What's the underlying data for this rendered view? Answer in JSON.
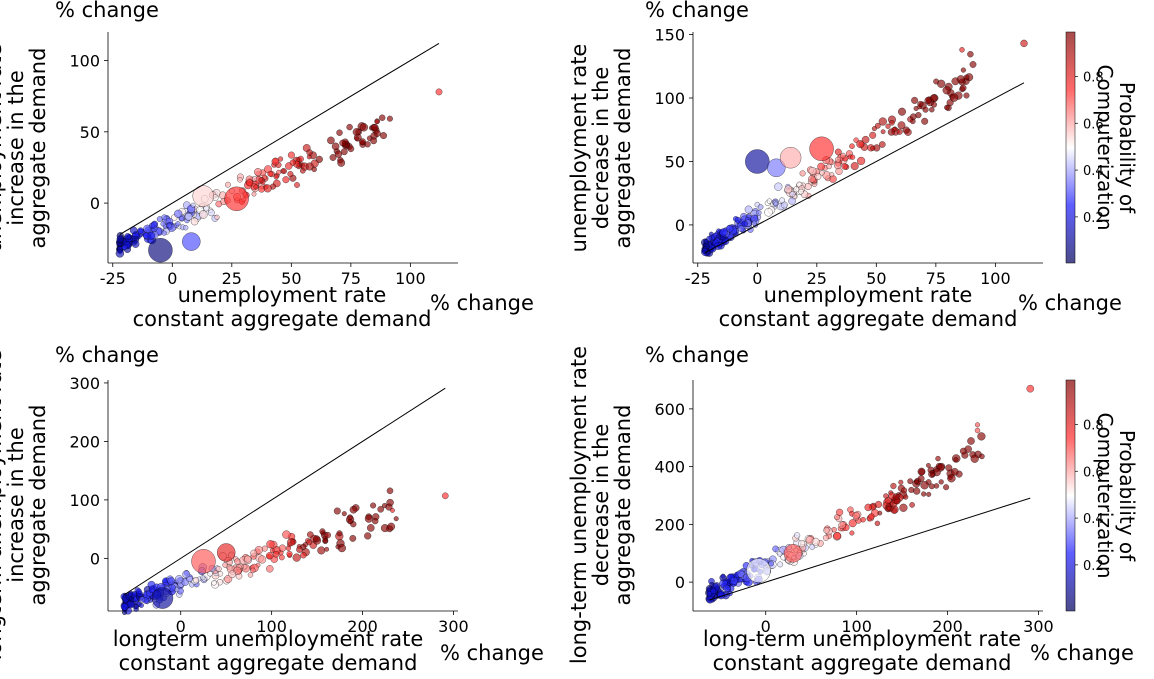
{
  "chart_data": [
    {
      "type": "scatter",
      "id": "p1",
      "x_label": [
        "unemployment rate",
        "constant aggregate demand"
      ],
      "y_label": [
        "unemployment rate",
        "increase in the",
        "aggregate demand"
      ],
      "x_unit": "% change",
      "y_unit": "% change",
      "xlim": [
        -27,
        120
      ],
      "ylim": [
        -42,
        120
      ],
      "x_ticks": [
        -25,
        0,
        25,
        50,
        75,
        100
      ],
      "y_ticks": [
        0,
        50,
        100
      ],
      "reference_line": {
        "x": [
          -22,
          112
        ],
        "y": [
          -22,
          112
        ]
      },
      "trend_fit": {
        "slope": 0.75,
        "intercept": -13
      },
      "x_data_range": [
        -22,
        112
      ],
      "sample_points": [
        {
          "x": -5,
          "y": -33,
          "p": 0.05,
          "big": true
        },
        {
          "x": 8,
          "y": -27,
          "p": 0.3,
          "big": true
        },
        {
          "x": 13,
          "y": 5,
          "p": 0.55,
          "big": true
        },
        {
          "x": 27,
          "y": 3,
          "p": 0.75,
          "big": true
        },
        {
          "x": 112,
          "y": 78,
          "p": 0.75,
          "big": false
        },
        {
          "x": 86,
          "y": 57,
          "p": 0.9,
          "big": false
        }
      ]
    },
    {
      "type": "scatter",
      "id": "p2",
      "x_label": [
        "unemployment rate",
        "constant aggregate demand"
      ],
      "y_label": [
        "unemployment rate",
        "decrease in the",
        "aggregate demand"
      ],
      "x_unit": "% change",
      "y_unit": "% change",
      "xlim": [
        -27,
        120
      ],
      "ylim": [
        -30,
        152
      ],
      "x_ticks": [
        -25,
        0,
        25,
        50,
        75,
        100
      ],
      "y_ticks": [
        0,
        50,
        100,
        150
      ],
      "reference_line": {
        "x": [
          -22,
          112
        ],
        "y": [
          -22,
          112
        ]
      },
      "trend_fit": {
        "slope": 1.2,
        "intercept": 8
      },
      "x_data_range": [
        -22,
        112
      ],
      "sample_points": [
        {
          "x": 0,
          "y": 50,
          "p": 0.1,
          "big": true
        },
        {
          "x": 8,
          "y": 45,
          "p": 0.35,
          "big": true
        },
        {
          "x": 14,
          "y": 53,
          "p": 0.6,
          "big": true
        },
        {
          "x": 27,
          "y": 60,
          "p": 0.75,
          "big": true
        },
        {
          "x": 112,
          "y": 143,
          "p": 0.85,
          "big": false
        },
        {
          "x": 86,
          "y": 138,
          "p": 0.8,
          "big": false
        }
      ]
    },
    {
      "type": "scatter",
      "id": "p3",
      "x_label": [
        "longterm unemployment rate",
        "constant aggregate demand"
      ],
      "y_label": [
        "longterm unemployment rate",
        "increase in the",
        "aggregate demand"
      ],
      "x_unit": "% change",
      "y_unit": "% change",
      "xlim": [
        -80,
        305
      ],
      "ylim": [
        -90,
        305
      ],
      "x_ticks": [
        0,
        100,
        200,
        300
      ],
      "y_ticks": [
        0,
        100,
        200,
        300
      ],
      "reference_line": {
        "x": [
          -62,
          291
        ],
        "y": [
          -62,
          291
        ]
      },
      "trend_fit": {
        "slope": 0.52,
        "intercept": -45
      },
      "x_data_range": [
        -62,
        291
      ],
      "sample_points": [
        {
          "x": 25,
          "y": -5,
          "p": 0.7,
          "big": true
        },
        {
          "x": 50,
          "y": 10,
          "p": 0.8,
          "big": true
        },
        {
          "x": -20,
          "y": -68,
          "p": 0.1,
          "big": true
        },
        {
          "x": 291,
          "y": 107,
          "p": 0.75,
          "big": false
        },
        {
          "x": 233,
          "y": 82,
          "p": 0.8,
          "big": false
        }
      ]
    },
    {
      "type": "scatter",
      "id": "p4",
      "x_label": [
        "long-term unemployment rate",
        "constant aggregate demand"
      ],
      "y_label": [
        "long-term unemployment rate",
        "decrease in the",
        "aggregate demand"
      ],
      "x_unit": "% change",
      "y_unit": "% change",
      "xlim": [
        -80,
        305
      ],
      "ylim": [
        -100,
        700
      ],
      "x_ticks": [
        0,
        100,
        200,
        300
      ],
      "y_ticks": [
        0,
        200,
        400,
        600
      ],
      "reference_line": {
        "x": [
          -62,
          291
        ],
        "y": [
          -62,
          291
        ]
      },
      "trend_fit": {
        "slope": 1.6,
        "intercept": 60
      },
      "x_data_range": [
        -62,
        291
      ],
      "sample_points": [
        {
          "x": 291,
          "y": 670,
          "p": 0.75,
          "big": false
        },
        {
          "x": 233,
          "y": 525,
          "p": 0.7,
          "big": false
        },
        {
          "x": 233,
          "y": 545,
          "p": 0.7,
          "big": false
        },
        {
          "x": -8,
          "y": 40,
          "p": 0.5,
          "big": true
        },
        {
          "x": 30,
          "y": 100,
          "p": 0.7,
          "big": true
        }
      ]
    }
  ],
  "colorbar": {
    "label": [
      "Probability of",
      "Computerization"
    ],
    "ticks": [
      0.2,
      0.4,
      0.6,
      0.8
    ],
    "range": [
      0.003,
      0.99
    ],
    "colormap": "seismic",
    "colors": [
      "#00005a",
      "#1a1aff",
      "#ffffff",
      "#ff2a2a",
      "#800000"
    ]
  }
}
